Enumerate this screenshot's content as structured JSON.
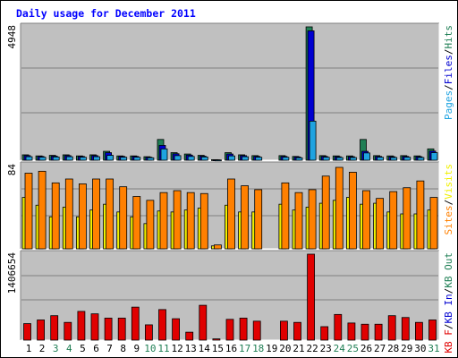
{
  "title": "Daily usage for December 2011",
  "colors": {
    "pages": "#1fa3e0",
    "files": "#0000d0",
    "hits": "#1f7f55",
    "visits": "#f0f000",
    "sites": "#ff8000",
    "kbout": "#1f7f55",
    "kbin": "#0000d0",
    "kbf": "#e00000",
    "weekend": "#1f7f55",
    "weekday": "#000000",
    "separator": "#000000"
  },
  "chart_data": [
    {
      "type": "bar",
      "panel": "top",
      "max_label": "4948",
      "ylim": [
        0,
        4948
      ],
      "legend": [
        {
          "text": "Pages",
          "color_key": "pages"
        },
        {
          "text": "/",
          "color_key": "separator"
        },
        {
          "text": "Files",
          "color_key": "files"
        },
        {
          "text": "/",
          "color_key": "separator"
        },
        {
          "text": "Hits",
          "color_key": "hits"
        }
      ],
      "series": [
        {
          "name": "Hits",
          "color_key": "hits",
          "values": [
            200,
            160,
            180,
            200,
            160,
            200,
            330,
            160,
            160,
            130,
            770,
            280,
            230,
            180,
            20,
            280,
            200,
            170,
            0,
            170,
            140,
            4948,
            170,
            160,
            160,
            770,
            170,
            160,
            170,
            160,
            420
          ]
        },
        {
          "name": "Files",
          "color_key": "files",
          "values": [
            170,
            140,
            150,
            170,
            140,
            170,
            280,
            140,
            140,
            110,
            550,
            240,
            190,
            150,
            15,
            230,
            170,
            140,
            0,
            140,
            120,
            4800,
            140,
            130,
            130,
            330,
            140,
            130,
            140,
            130,
            340
          ]
        },
        {
          "name": "Pages",
          "color_key": "pages",
          "values": [
            130,
            110,
            120,
            130,
            110,
            130,
            180,
            110,
            110,
            90,
            420,
            170,
            140,
            120,
            10,
            160,
            130,
            110,
            0,
            110,
            90,
            1450,
            110,
            100,
            100,
            270,
            110,
            100,
            110,
            100,
            280
          ]
        }
      ]
    },
    {
      "type": "bar",
      "panel": "middle",
      "max_label": "84",
      "ylim": [
        0,
        84
      ],
      "legend": [
        {
          "text": "Sites",
          "color_key": "sites"
        },
        {
          "text": "/",
          "color_key": "separator"
        },
        {
          "text": "Visits",
          "color_key": "visits"
        }
      ],
      "series": [
        {
          "name": "Visits",
          "color_key": "visits",
          "values": [
            53,
            45,
            33,
            43,
            33,
            40,
            46,
            38,
            33,
            26,
            39,
            38,
            40,
            42,
            3,
            45,
            38,
            38,
            0,
            46,
            40,
            43,
            47,
            50,
            53,
            46,
            47,
            38,
            36,
            36,
            40
          ]
        },
        {
          "name": "Sites",
          "color_key": "sites",
          "values": [
            78,
            80,
            68,
            72,
            67,
            72,
            72,
            64,
            54,
            50,
            58,
            60,
            58,
            57,
            4,
            72,
            65,
            61,
            0,
            68,
            58,
            61,
            75,
            84,
            79,
            60,
            52,
            59,
            63,
            70,
            53
          ]
        }
      ]
    },
    {
      "type": "bar",
      "panel": "bottom",
      "max_label": "1406654",
      "ylim": [
        0,
        1406654
      ],
      "legend": [
        {
          "text": "KB F",
          "color_key": "kbf"
        },
        {
          "text": "/",
          "color_key": "separator"
        },
        {
          "text": "KB In",
          "color_key": "kbin"
        },
        {
          "text": "/",
          "color_key": "separator"
        },
        {
          "text": "KB Out",
          "color_key": "kbout"
        }
      ],
      "series": [
        {
          "name": "KB F",
          "color_key": "kbf",
          "values": [
            270000,
            330000,
            400000,
            290000,
            470000,
            430000,
            360000,
            360000,
            540000,
            250000,
            500000,
            350000,
            130000,
            570000,
            20000,
            340000,
            360000,
            310000,
            0,
            310000,
            290000,
            1406654,
            220000,
            420000,
            280000,
            260000,
            260000,
            400000,
            370000,
            290000,
            330000
          ]
        }
      ]
    }
  ],
  "x_labels": [
    "1",
    "2",
    "3",
    "4",
    "5",
    "6",
    "7",
    "8",
    "9",
    "10",
    "11",
    "12",
    "13",
    "14",
    "15",
    "16",
    "17",
    "18",
    "19",
    "20",
    "21",
    "22",
    "23",
    "24",
    "25",
    "26",
    "27",
    "28",
    "29",
    "30",
    "31"
  ],
  "weekend_days": [
    3,
    4,
    10,
    11,
    17,
    18,
    24,
    25,
    31
  ]
}
